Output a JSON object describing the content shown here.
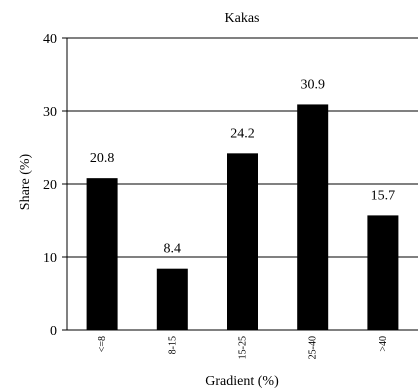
{
  "chart_data": {
    "type": "bar",
    "title": "Kakas",
    "xlabel": "Gradient (%)",
    "ylabel": "Share (%)",
    "categories": [
      "<=8",
      "8-15",
      "15-25",
      "25-40",
      ">40"
    ],
    "values": [
      20.8,
      8.4,
      24.2,
      30.9,
      15.7
    ],
    "data_labels": [
      "20.8",
      "8.4",
      "24.2",
      "30.9",
      "15.7"
    ],
    "ylim": [
      0,
      40
    ],
    "yticks": [
      0,
      10,
      20,
      30,
      40
    ],
    "grid": "horizontal",
    "bar_color": "#000000",
    "legend": "none"
  }
}
